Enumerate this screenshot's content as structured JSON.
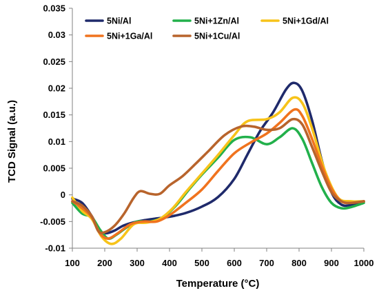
{
  "chart_data": {
    "type": "line",
    "xlabel": "Temperature (°C)",
    "ylabel": "TCD Signal (a.u.)",
    "xlim": [
      100,
      1000
    ],
    "ylim": [
      -0.01,
      0.035
    ],
    "xticks": [
      "100",
      "200",
      "300",
      "400",
      "500",
      "600",
      "700",
      "800",
      "900",
      "1000"
    ],
    "yticks": [
      "-0.01",
      "-0.005",
      "0",
      "0.005",
      "0.01",
      "0.015",
      "0.02",
      "0.025",
      "0.03",
      "0.035"
    ],
    "grid": false,
    "legend_position": "top",
    "series": [
      {
        "name": "5Ni/Al",
        "color": "#1F2A6B",
        "points": [
          [
            100,
            -0.0007
          ],
          [
            130,
            -0.0015
          ],
          [
            160,
            -0.004
          ],
          [
            185,
            -0.0068
          ],
          [
            205,
            -0.0072
          ],
          [
            230,
            -0.0067
          ],
          [
            260,
            -0.0057
          ],
          [
            300,
            -0.005
          ],
          [
            350,
            -0.0045
          ],
          [
            400,
            -0.0041
          ],
          [
            450,
            -0.0034
          ],
          [
            500,
            -0.0022
          ],
          [
            550,
            -0.0004
          ],
          [
            600,
            0.003
          ],
          [
            640,
            0.0075
          ],
          [
            680,
            0.012
          ],
          [
            720,
            0.0155
          ],
          [
            760,
            0.0198
          ],
          [
            785,
            0.021
          ],
          [
            810,
            0.0195
          ],
          [
            840,
            0.014
          ],
          [
            870,
            0.0065
          ],
          [
            900,
            0.0005
          ],
          [
            930,
            -0.0018
          ],
          [
            960,
            -0.0019
          ],
          [
            1000,
            -0.0013
          ]
        ]
      },
      {
        "name": "5Ni+1Zn/Al",
        "color": "#22B04B",
        "points": [
          [
            100,
            -0.0015
          ],
          [
            130,
            -0.0035
          ],
          [
            160,
            -0.0042
          ],
          [
            185,
            -0.0065
          ],
          [
            210,
            -0.0082
          ],
          [
            235,
            -0.0075
          ],
          [
            270,
            -0.006
          ],
          [
            300,
            -0.005
          ],
          [
            340,
            -0.005
          ],
          [
            380,
            -0.0042
          ],
          [
            420,
            -0.002
          ],
          [
            460,
            0.001
          ],
          [
            500,
            0.0038
          ],
          [
            550,
            0.007
          ],
          [
            600,
            0.0103
          ],
          [
            650,
            0.0108
          ],
          [
            700,
            0.0095
          ],
          [
            740,
            0.0108
          ],
          [
            780,
            0.0125
          ],
          [
            810,
            0.0105
          ],
          [
            840,
            0.006
          ],
          [
            870,
            0.0015
          ],
          [
            900,
            -0.0015
          ],
          [
            930,
            -0.0025
          ],
          [
            960,
            -0.0023
          ],
          [
            1000,
            -0.0015
          ]
        ]
      },
      {
        "name": "5Ni+1Gd/Al",
        "color": "#F7C31A",
        "points": [
          [
            100,
            -0.0005
          ],
          [
            130,
            -0.003
          ],
          [
            160,
            -0.0045
          ],
          [
            190,
            -0.0078
          ],
          [
            220,
            -0.0092
          ],
          [
            250,
            -0.0082
          ],
          [
            290,
            -0.0055
          ],
          [
            330,
            -0.0052
          ],
          [
            370,
            -0.0045
          ],
          [
            410,
            -0.0025
          ],
          [
            450,
            0.0005
          ],
          [
            500,
            0.004
          ],
          [
            550,
            0.0075
          ],
          [
            600,
            0.0112
          ],
          [
            640,
            0.0138
          ],
          [
            700,
            0.0142
          ],
          [
            740,
            0.0155
          ],
          [
            780,
            0.0182
          ],
          [
            810,
            0.0172
          ],
          [
            840,
            0.0125
          ],
          [
            880,
            0.0045
          ],
          [
            920,
            -0.0005
          ],
          [
            960,
            -0.0012
          ],
          [
            1000,
            -0.0012
          ]
        ]
      },
      {
        "name": "5Ni+1Ga/Al",
        "color": "#F0731E",
        "points": [
          [
            100,
            -0.0012
          ],
          [
            130,
            -0.0025
          ],
          [
            160,
            -0.0042
          ],
          [
            185,
            -0.0072
          ],
          [
            210,
            -0.0082
          ],
          [
            240,
            -0.0072
          ],
          [
            280,
            -0.0055
          ],
          [
            320,
            -0.005
          ],
          [
            360,
            -0.005
          ],
          [
            400,
            -0.0038
          ],
          [
            450,
            -0.0015
          ],
          [
            500,
            0.001
          ],
          [
            550,
            0.0045
          ],
          [
            600,
            0.0078
          ],
          [
            650,
            0.0098
          ],
          [
            700,
            0.0115
          ],
          [
            740,
            0.0135
          ],
          [
            785,
            0.016
          ],
          [
            810,
            0.0148
          ],
          [
            840,
            0.0105
          ],
          [
            870,
            0.0055
          ],
          [
            900,
            0.0012
          ],
          [
            930,
            -0.0012
          ],
          [
            960,
            -0.0015
          ],
          [
            1000,
            -0.0012
          ]
        ]
      },
      {
        "name": "5Ni+1Cu/Al",
        "color": "#B8642C",
        "points": [
          [
            100,
            -0.0012
          ],
          [
            130,
            -0.002
          ],
          [
            160,
            -0.004
          ],
          [
            180,
            -0.0068
          ],
          [
            200,
            -0.007
          ],
          [
            230,
            -0.0058
          ],
          [
            260,
            -0.0035
          ],
          [
            290,
            -0.0005
          ],
          [
            310,
            0.0007
          ],
          [
            340,
            0.0002
          ],
          [
            370,
            0.0002
          ],
          [
            400,
            0.0018
          ],
          [
            440,
            0.0035
          ],
          [
            480,
            0.0058
          ],
          [
            520,
            0.0082
          ],
          [
            570,
            0.0112
          ],
          [
            620,
            0.0128
          ],
          [
            660,
            0.0128
          ],
          [
            700,
            0.0122
          ],
          [
            740,
            0.0125
          ],
          [
            780,
            0.0142
          ],
          [
            810,
            0.0132
          ],
          [
            840,
            0.009
          ],
          [
            870,
            0.0045
          ],
          [
            900,
            0.0005
          ],
          [
            930,
            -0.0012
          ],
          [
            960,
            -0.0015
          ],
          [
            1000,
            -0.0012
          ]
        ]
      }
    ]
  }
}
